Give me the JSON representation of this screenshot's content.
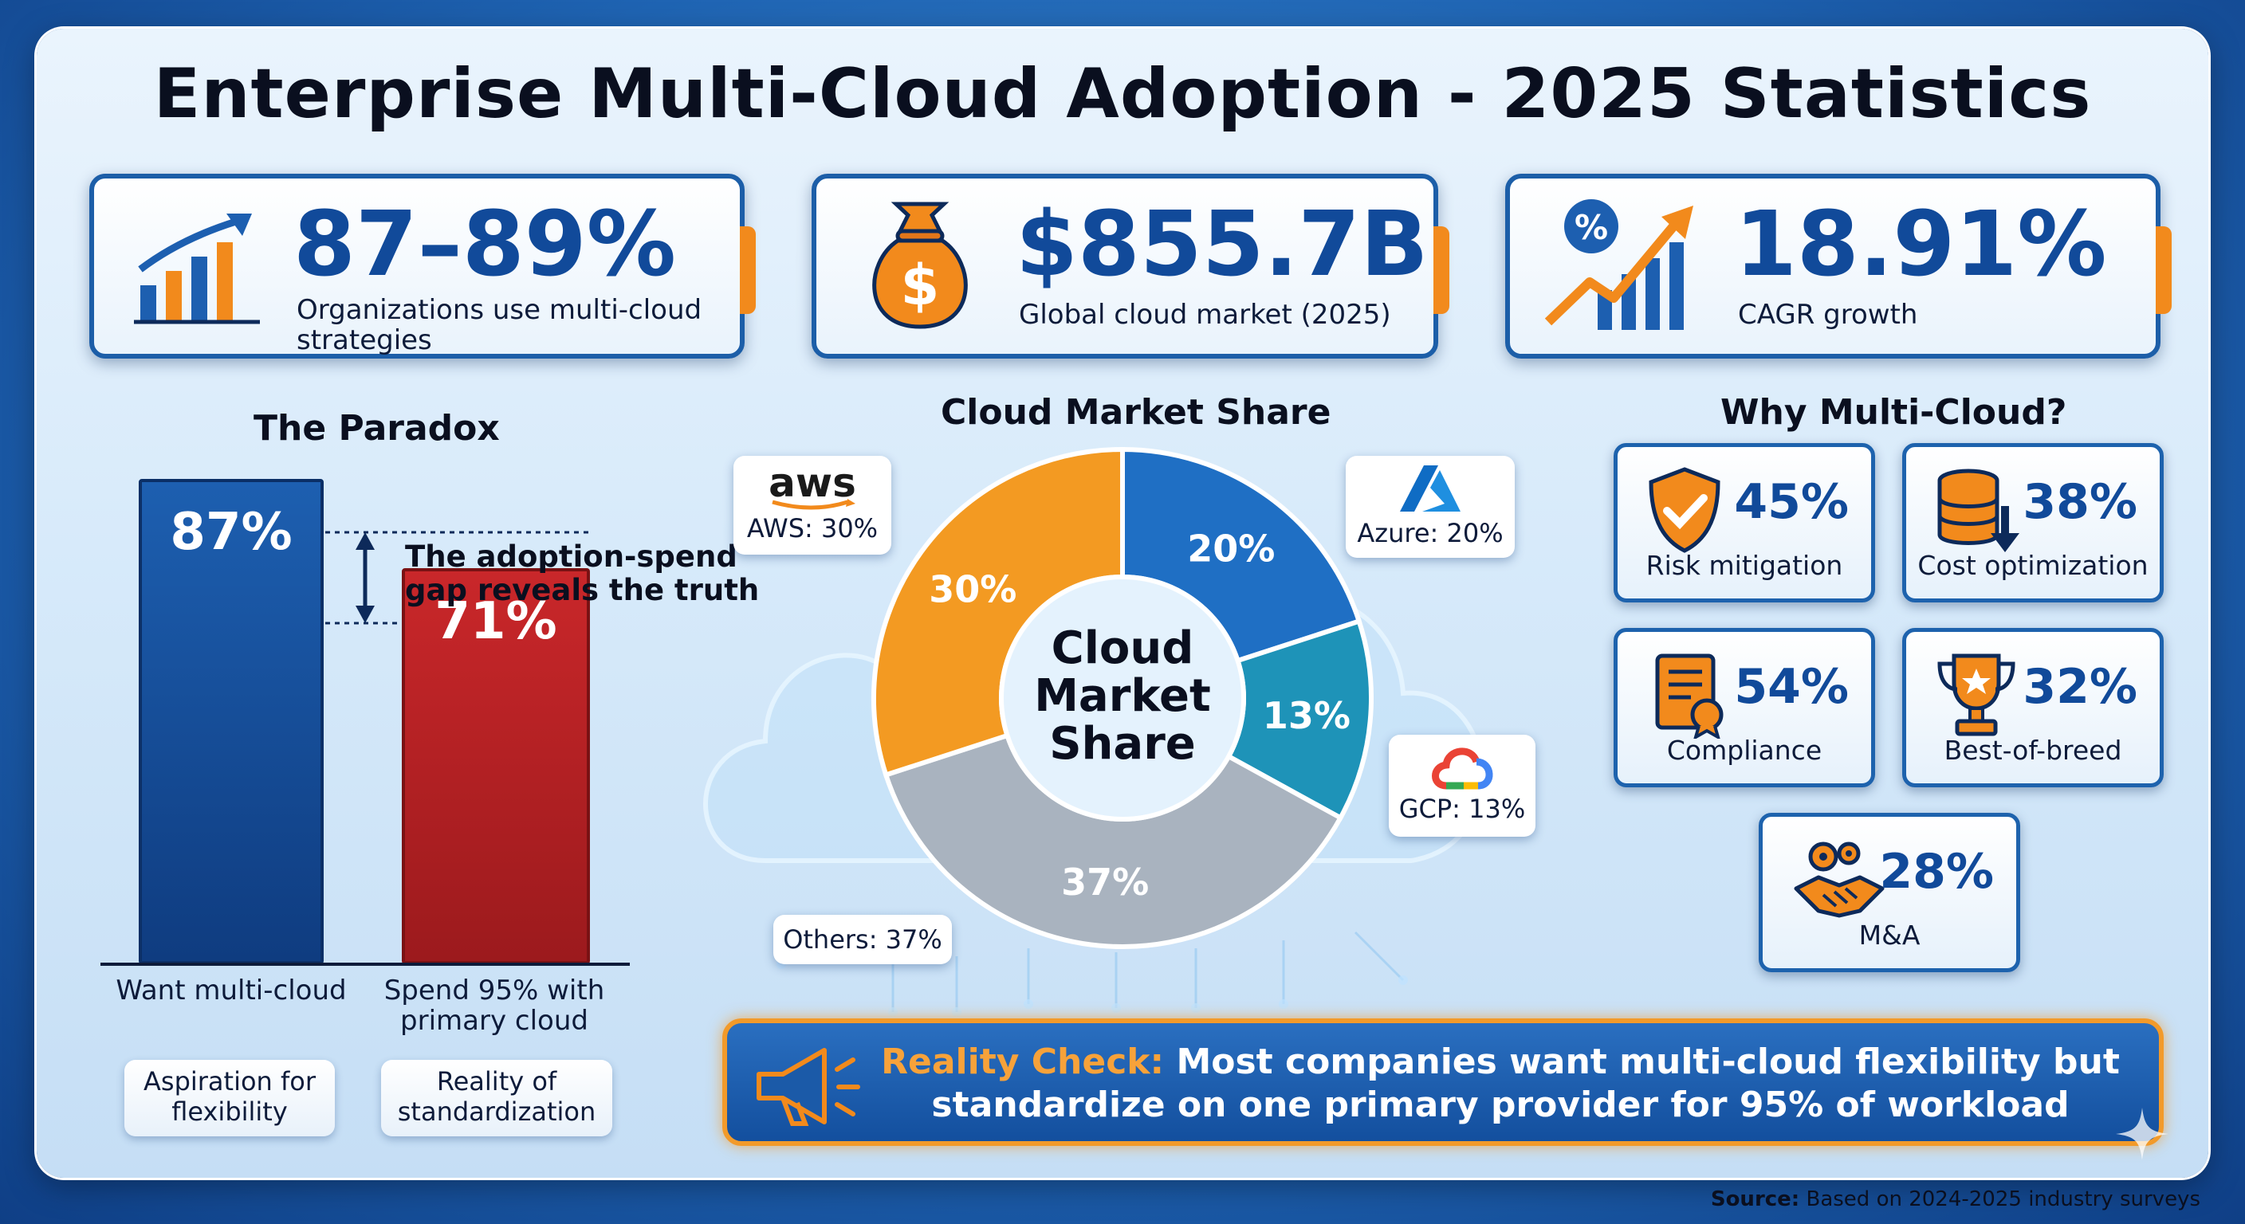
{
  "title": "Enterprise Multi-Cloud Adoption - 2025 Statistics",
  "kpis": [
    {
      "value": "87–89%",
      "label_line1": "Organizations use multi-cloud",
      "label_line2": "strategies",
      "icon": "bar-chart-growth-icon"
    },
    {
      "value": "$855.7B",
      "label_line1": "Global cloud market (2025)",
      "label_line2": "",
      "icon": "money-bag-icon"
    },
    {
      "value": "18.91%",
      "label_line1": "CAGR growth",
      "label_line2": "",
      "icon": "percent-growth-icon"
    }
  ],
  "paradox": {
    "title": "The Paradox",
    "gap_note_line1": "The adoption-spend",
    "gap_note_line2": "gap reveals the truth",
    "bars": [
      {
        "value": 87,
        "value_label": "87%",
        "label_line1": "Want multi-cloud",
        "label_line2": "",
        "chip_line1": "Aspiration for",
        "chip_line2": "flexibility",
        "color": "#1d5fb0"
      },
      {
        "value": 71,
        "value_label": "71%",
        "label_line1": "Spend 95% with",
        "label_line2": "primary cloud",
        "chip_line1": "Reality of",
        "chip_line2": "standardization",
        "color": "#c9272a"
      }
    ]
  },
  "market": {
    "title": "Cloud Market Share",
    "center_line1": "Cloud",
    "center_line2": "Market",
    "center_line3": "Share",
    "aws_logo": "aws",
    "callouts": {
      "aws": "AWS: 30%",
      "azure": "Azure: 20%",
      "gcp": "GCP: 13%",
      "others": "Others: 37%"
    }
  },
  "chart_data": {
    "type": "pie",
    "title": "Cloud Market Share",
    "slices": [
      {
        "name": "AWS",
        "value": 30,
        "label": "30%",
        "color": "#f39a22"
      },
      {
        "name": "Azure",
        "value": 20,
        "label": "20%",
        "color": "#1f6fc4"
      },
      {
        "name": "GCP",
        "value": 13,
        "label": "13%",
        "color": "#1e93b8"
      },
      {
        "name": "Others",
        "value": 37,
        "label": "37%",
        "color": "#a9b3bf"
      }
    ]
  },
  "why": {
    "title": "Why Multi-Cloud?",
    "items": [
      {
        "pct": "45%",
        "label": "Risk mitigation",
        "icon": "shield-check-icon"
      },
      {
        "pct": "38%",
        "label": "Cost optimization",
        "icon": "coins-down-icon"
      },
      {
        "pct": "54%",
        "label": "Compliance",
        "icon": "certificate-icon"
      },
      {
        "pct": "32%",
        "label": "Best-of-breed",
        "icon": "trophy-icon"
      },
      {
        "pct": "28%",
        "label": "M&A",
        "icon": "handshake-gears-icon"
      }
    ]
  },
  "reality": {
    "highlight": "Reality Check:",
    "line1_rest": " Most companies want multi-cloud flexibility but",
    "line2": "standardize on one primary provider for 95% of workload"
  },
  "source": {
    "label": "Source:",
    "text": " Based on 2024-2025 industry surveys"
  }
}
